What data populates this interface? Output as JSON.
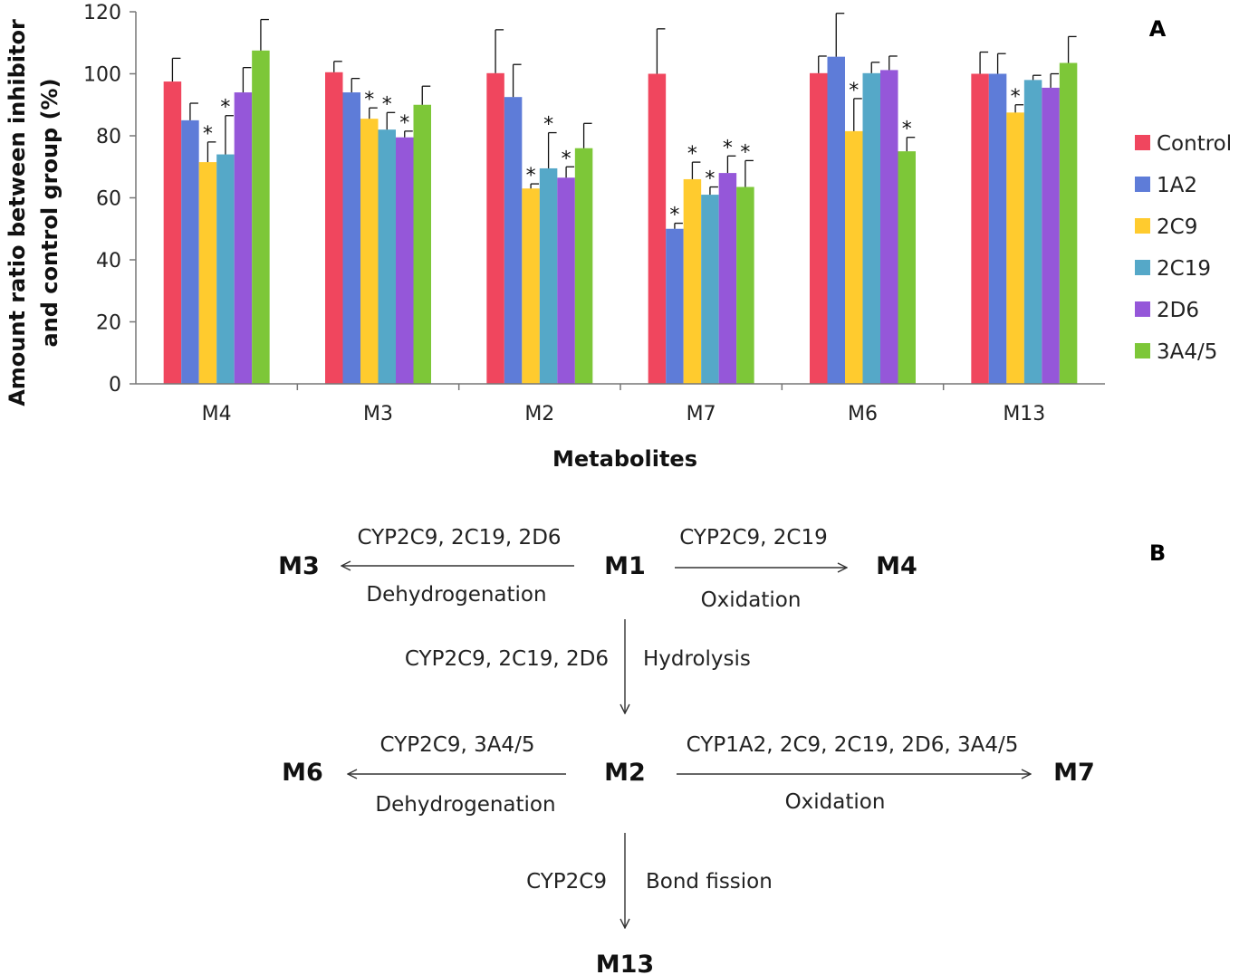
{
  "chart_data": {
    "type": "bar",
    "title": "",
    "panel_label": "A",
    "xlabel": "Metabolites",
    "ylabel_lines": [
      "Amount ratio between inhibitor",
      "and control group (%)"
    ],
    "ylim": [
      0,
      120
    ],
    "yticks": [
      "0",
      "20",
      "40",
      "60",
      "80",
      "100",
      "120"
    ],
    "legend_position": "right",
    "categories": [
      "M4",
      "M3",
      "M2",
      "M7",
      "M6",
      "M13"
    ],
    "series": [
      {
        "name": "Control",
        "color": "#F0465E",
        "values": [
          97.5,
          100.5,
          100.2,
          100.0,
          100.2,
          100.0
        ],
        "errors": [
          7.5,
          3.5,
          14,
          14.5,
          5.5,
          7.0
        ],
        "significant": [
          false,
          false,
          false,
          false,
          false,
          false
        ]
      },
      {
        "name": "1A2",
        "color": "#5E7CD8",
        "values": [
          85.0,
          94.0,
          92.5,
          50.0,
          105.5,
          100.0
        ],
        "errors": [
          5.5,
          4.5,
          10.5,
          1.8,
          14,
          6.5
        ],
        "significant": [
          false,
          false,
          false,
          true,
          false,
          false
        ]
      },
      {
        "name": "2C9",
        "color": "#FFCB2E",
        "values": [
          71.5,
          85.5,
          63.0,
          66.0,
          81.5,
          87.5
        ],
        "errors": [
          6.5,
          3.5,
          1.5,
          5.5,
          10.5,
          2.5
        ],
        "significant": [
          true,
          true,
          true,
          true,
          true,
          true
        ]
      },
      {
        "name": "2C19",
        "color": "#55A8C8",
        "values": [
          74.0,
          82.0,
          69.5,
          61.0,
          100.2,
          98.0
        ],
        "errors": [
          12.5,
          5.5,
          11.5,
          2.5,
          3.5,
          1.5
        ],
        "significant": [
          true,
          true,
          true,
          true,
          false,
          false
        ]
      },
      {
        "name": "2D6",
        "color": "#9557D9",
        "values": [
          94.0,
          79.5,
          66.5,
          68.0,
          101.2,
          95.5
        ],
        "errors": [
          8.0,
          2.0,
          3.5,
          5.5,
          4.5,
          4.5
        ],
        "significant": [
          false,
          true,
          true,
          true,
          false,
          false
        ]
      },
      {
        "name": "3A4/5",
        "color": "#7DC738",
        "values": [
          107.5,
          90.0,
          76.0,
          63.5,
          75.0,
          103.5
        ],
        "errors": [
          10.0,
          6.0,
          8.0,
          8.5,
          4.5,
          8.5
        ],
        "significant": [
          false,
          false,
          false,
          true,
          true,
          false
        ]
      }
    ],
    "significance_mark": "*"
  },
  "diagram": {
    "panel_label": "B",
    "nodes": {
      "m1": "M1",
      "m3": "M3",
      "m4": "M4",
      "m2": "M2",
      "m6": "M6",
      "m7": "M7",
      "m13": "M13"
    },
    "edges": {
      "m1_m3_enzymes": "CYP2C9, 2C19, 2D6",
      "m1_m3_reaction": "Dehydrogenation",
      "m1_m4_enzymes": "CYP2C9, 2C19",
      "m1_m4_reaction": "Oxidation",
      "m1_m2_enzymes": "CYP2C9, 2C19, 2D6",
      "m1_m2_reaction": "Hydrolysis",
      "m2_m6_enzymes": "CYP2C9, 3A4/5",
      "m2_m6_reaction": "Dehydrogenation",
      "m2_m7_enzymes": "CYP1A2, 2C9, 2C19, 2D6, 3A4/5",
      "m2_m7_reaction": "Oxidation",
      "m2_m13_enzymes": "CYP2C9",
      "m2_m13_reaction": "Bond fission"
    }
  }
}
